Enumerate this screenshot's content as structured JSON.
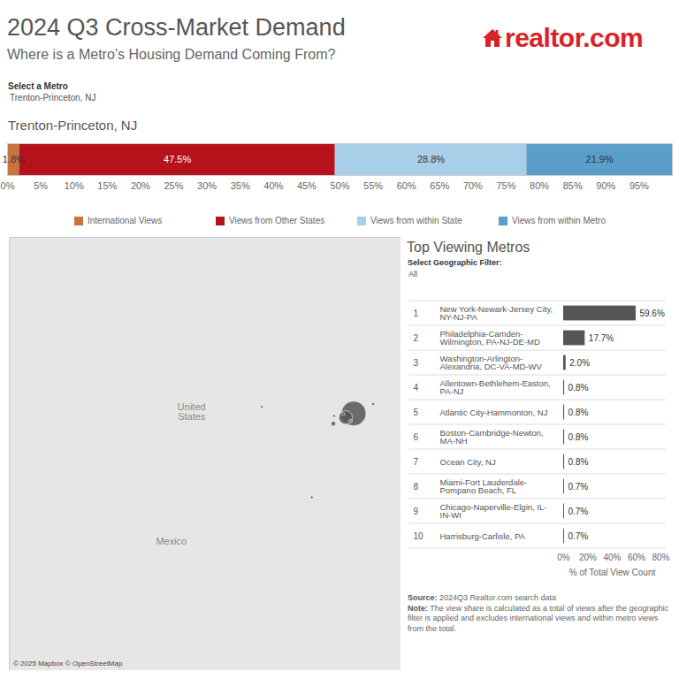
{
  "page": {
    "title": "2024 Q3 Cross-Market Demand",
    "subtitle": "Where is a Metro’s Housing Demand Coming From?",
    "logo": "realtor.com",
    "selector_label": "Select a Metro",
    "selector_value": "Trenton-Princeton, NJ",
    "source_label": "Source:",
    "source": "2024Q3 Realtor.com search data",
    "note_label": "Note:",
    "note": "The view share is calculated as a total of views after the geographic filter is applied and excludes international views and within metro views from the total."
  },
  "chart_data": [
    {
      "type": "bar",
      "orientation": "horizontal",
      "stacked": true,
      "title": "Trenton-Princeton, NJ",
      "categories": [
        null
      ],
      "series": [
        {
          "name": "International Views",
          "color": "#c8743f",
          "values": [
            1.8
          ],
          "value_labels": [
            "1.8%"
          ]
        },
        {
          "name": "Views from Other States",
          "color": "#b5121b",
          "values": [
            47.5
          ],
          "value_labels": [
            "47.5%"
          ]
        },
        {
          "name": "Views from within State",
          "color": "#a9cfe8",
          "values": [
            28.8
          ],
          "value_labels": [
            "28.8%"
          ]
        },
        {
          "name": "Views from within Metro",
          "color": "#5b9ec9",
          "values": [
            21.9
          ],
          "value_labels": [
            "21.9%"
          ]
        }
      ],
      "xlim": [
        0,
        100
      ],
      "xticks": [
        {
          "value": 0,
          "label": "0%"
        },
        {
          "value": 5,
          "label": "5%"
        },
        {
          "value": 10,
          "label": "10%"
        },
        {
          "value": 15,
          "label": "15%"
        },
        {
          "value": 20,
          "label": "20%"
        },
        {
          "value": 25,
          "label": "25%"
        },
        {
          "value": 30,
          "label": "30%"
        },
        {
          "value": 35,
          "label": "35%"
        },
        {
          "value": 40,
          "label": "40%"
        },
        {
          "value": 45,
          "label": "45%"
        },
        {
          "value": 50,
          "label": "50%"
        },
        {
          "value": 55,
          "label": "55%"
        },
        {
          "value": 60,
          "label": "60%"
        },
        {
          "value": 65,
          "label": "65%"
        },
        {
          "value": 70,
          "label": "70%"
        },
        {
          "value": 75,
          "label": "75%"
        },
        {
          "value": 80,
          "label": "80%"
        },
        {
          "value": 85,
          "label": "85%"
        },
        {
          "value": 90,
          "label": "90%"
        },
        {
          "value": 95,
          "label": "95%"
        }
      ],
      "data_labels": true,
      "legend": "bottom",
      "tick_labels": "x"
    },
    {
      "type": "scatter",
      "categories": [
        "New York-Newark-Jersey City, NY-NJ-PA",
        "Philadelphia-Camden-Wilmington, PA-NJ-DE-MD",
        "Washington-Arlington-Alexandria, DC-VA-MD-WV",
        "Allentown-Bethlehem-Easton, PA-NJ",
        "Atlantic City-Hammonton, NJ",
        "Boston-Cambridge-Newton, MA-NH",
        "Ocean City, NJ",
        "Miami-Fort Lauderdale-Pompano Beach, FL",
        "Chicago-Naperville-Elgin, IL-IN-WI",
        "Harrisburg-Carlisle, PA"
      ],
      "x": [
        -74.0,
        -75.2,
        -77.0,
        -75.5,
        -74.4,
        -71.1,
        -74.6,
        -80.2,
        -87.6,
        -76.9
      ],
      "y": [
        40.7,
        40.0,
        38.9,
        40.6,
        39.4,
        42.4,
        39.3,
        25.8,
        41.9,
        40.3
      ],
      "size": [
        59.6,
        17.7,
        2.0,
        0.8,
        0.8,
        0.8,
        0.8,
        0.7,
        0.7,
        0.7
      ],
      "color": "#555555",
      "xlim": [
        -125,
        -67
      ],
      "ylim": [
        -5,
        72
      ],
      "tick_labels": false,
      "annotations": [
        {
          "text": "United States",
          "x": -98,
          "y": 41
        },
        {
          "text": "Mexico",
          "x": -101,
          "y": 18
        }
      ],
      "attribution": "© 2025 Mapbox © OpenStreetMap"
    },
    {
      "type": "bar",
      "orientation": "horizontal",
      "title": "Top Viewing Metros",
      "filter_label": "Select Geographic Filter:",
      "filter_value": "All",
      "ranks": [
        1,
        2,
        3,
        4,
        5,
        6,
        7,
        8,
        9,
        10
      ],
      "categories": [
        "New York-Newark-Jersey City, NY-NJ-PA",
        "Philadelphia-Camden-Wilmington, PA-NJ-DE-MD",
        "Washington-Arlington-Alexandria, DC-VA-MD-WV",
        "Allentown-Bethlehem-Easton, PA-NJ",
        "Atlantic City-Hammonton, NJ",
        "Boston-Cambridge-Newton, MA-NH",
        "Ocean City, NJ",
        "Miami-Fort Lauderdale-Pompano Beach, FL",
        "Chicago-Naperville-Elgin, IL-IN-WI",
        "Harrisburg-Carlisle, PA"
      ],
      "values": [
        59.6,
        17.7,
        2.0,
        0.8,
        0.8,
        0.8,
        0.8,
        0.7,
        0.7,
        0.7
      ],
      "value_labels": [
        "59.6%",
        "17.7%",
        "2.0%",
        "0.8%",
        "0.8%",
        "0.8%",
        "0.8%",
        "0.7%",
        "0.7%",
        "0.7%"
      ],
      "color": "#555555",
      "xlim": [
        0,
        80
      ],
      "xticks": [
        {
          "value": 0,
          "label": "0%"
        },
        {
          "value": 20,
          "label": "20%"
        },
        {
          "value": 40,
          "label": "40%"
        },
        {
          "value": 60,
          "label": "60%"
        },
        {
          "value": 80,
          "label": "80%"
        }
      ],
      "xlabel": "% of Total View Count",
      "data_labels": true,
      "tick_labels": "x"
    }
  ]
}
